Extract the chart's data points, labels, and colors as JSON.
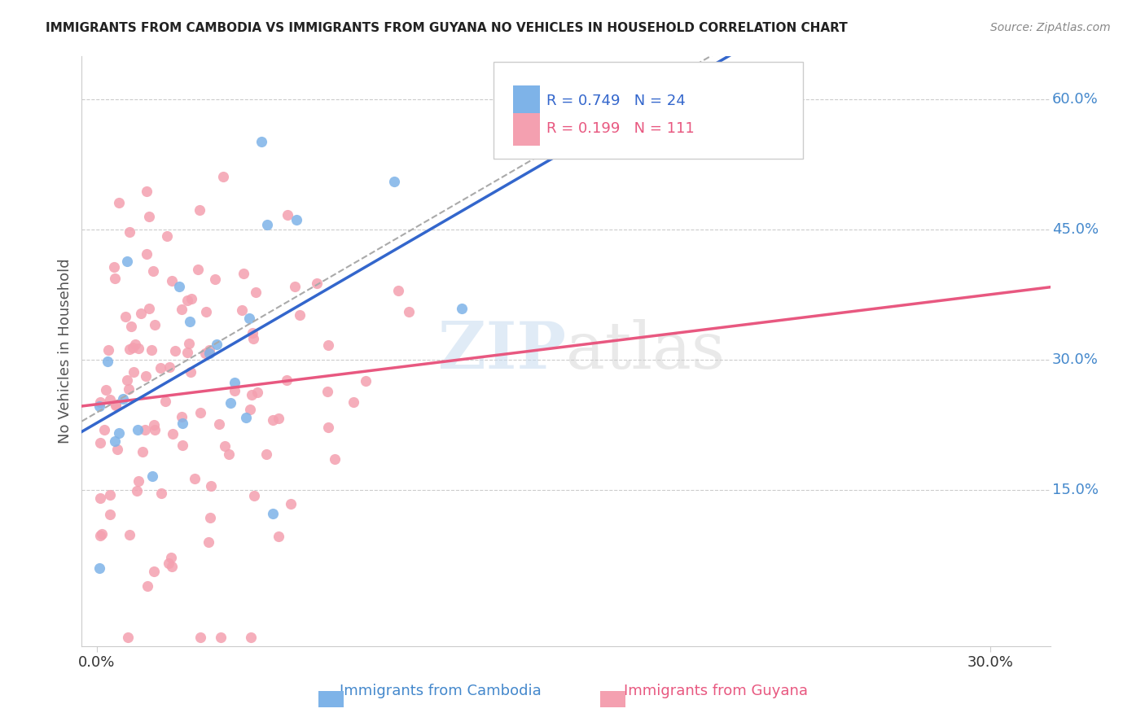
{
  "title": "IMMIGRANTS FROM CAMBODIA VS IMMIGRANTS FROM GUYANA NO VEHICLES IN HOUSEHOLD CORRELATION CHART",
  "source": "Source: ZipAtlas.com",
  "ylabel": "No Vehicles in Household",
  "right_ytick_labels": [
    "60.0%",
    "45.0%",
    "30.0%",
    "15.0%"
  ],
  "right_ytick_values": [
    0.6,
    0.45,
    0.3,
    0.15
  ],
  "xtick_labels": [
    "0.0%",
    "30.0%"
  ],
  "xtick_values": [
    0.0,
    0.3
  ],
  "xlim": [
    -0.005,
    0.32
  ],
  "ylim": [
    -0.03,
    0.65
  ],
  "legend_blue_r": "0.749",
  "legend_blue_n": "24",
  "legend_pink_r": "0.199",
  "legend_pink_n": "111",
  "legend_label_blue": "Immigrants from Cambodia",
  "legend_label_pink": "Immigrants from Guyana",
  "watermark_zip": "ZIP",
  "watermark_atlas": "atlas",
  "blue_color": "#7EB3E8",
  "pink_color": "#F4A0B0",
  "blue_line_color": "#3366CC",
  "pink_line_color": "#E85880",
  "title_color": "#222222",
  "axis_label_color": "#555555",
  "right_tick_color": "#4488CC",
  "grid_color": "#CCCCCC"
}
